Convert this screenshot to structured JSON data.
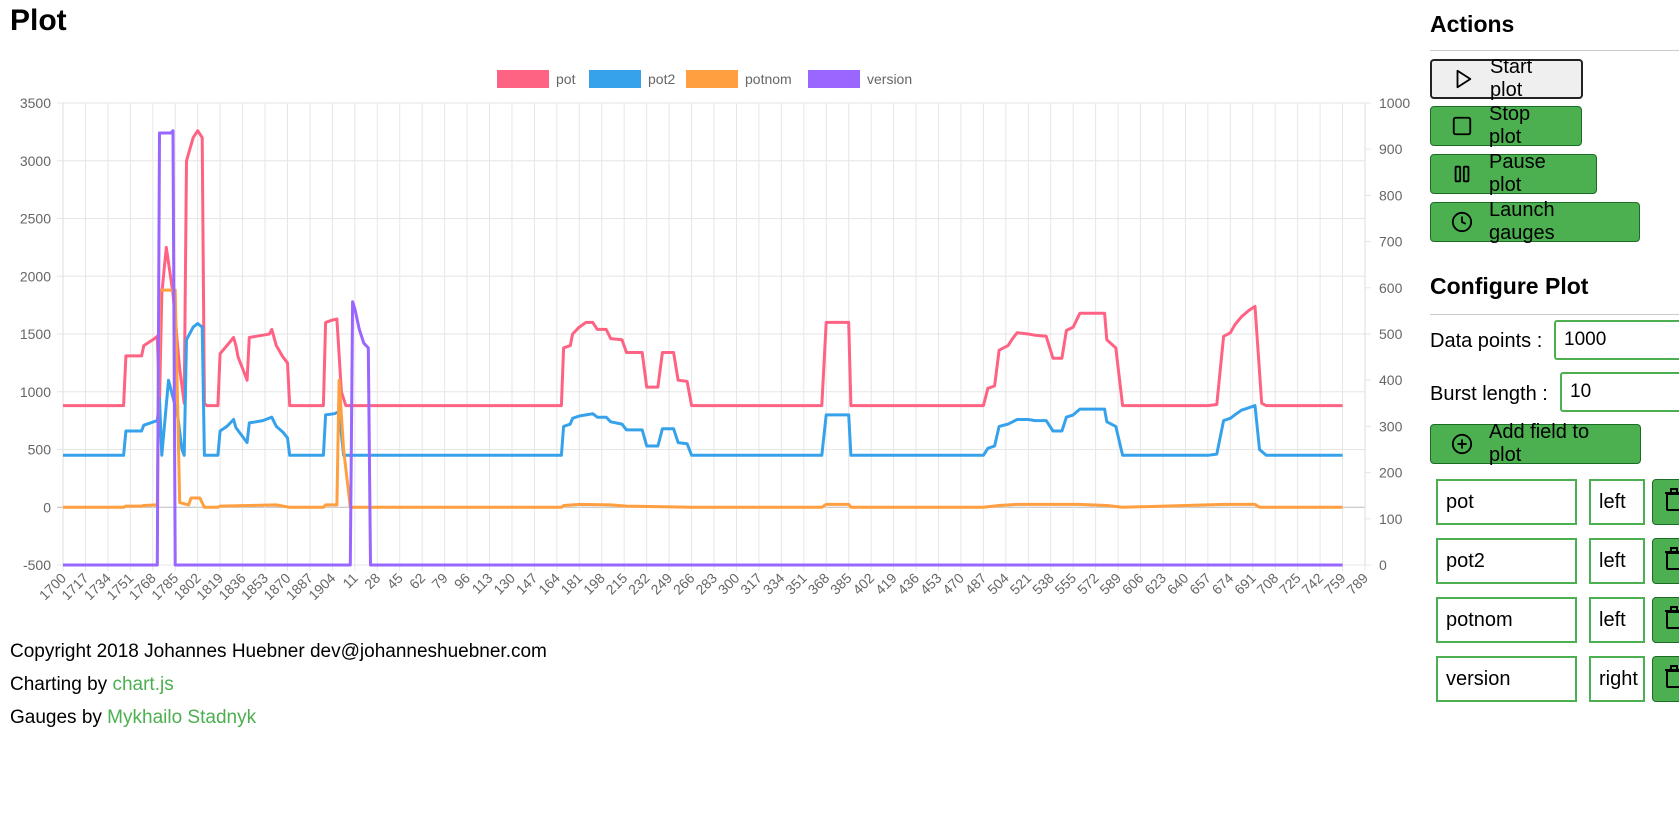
{
  "page": {
    "title": "Plot"
  },
  "footer": {
    "copyright": "Copyright 2018 Johannes Huebner dev@johanneshuebner.com",
    "charting_prefix": "Charting by ",
    "charting_link": "chart.js",
    "gauges_prefix": "Gauges by ",
    "gauges_link": "Mykhailo Stadnyk"
  },
  "actions": {
    "heading": "Actions",
    "buttons": [
      {
        "label": "Start plot",
        "icon": "play-icon"
      },
      {
        "label": "Stop plot",
        "icon": "stop-icon"
      },
      {
        "label": "Pause plot",
        "icon": "pause-icon"
      },
      {
        "label": "Launch gauges",
        "icon": "clock-icon"
      }
    ]
  },
  "configure": {
    "heading": "Configure Plot",
    "data_points_label": "Data points :",
    "data_points_value": "1000",
    "burst_length_label": "Burst length :",
    "burst_length_value": "10",
    "add_field_label": "Add field to plot",
    "fields": [
      {
        "name": "pot",
        "axis": "left"
      },
      {
        "name": "pot2",
        "axis": "left"
      },
      {
        "name": "potnom",
        "axis": "left"
      },
      {
        "name": "version",
        "axis": "right"
      }
    ]
  },
  "chart_data": {
    "type": "line",
    "legend_position": "top",
    "grid": true,
    "x_labels": [
      "1700",
      "1717",
      "1734",
      "1751",
      "1768",
      "1785",
      "1802",
      "1819",
      "1836",
      "1853",
      "1870",
      "1887",
      "1904",
      "11",
      "28",
      "45",
      "62",
      "79",
      "96",
      "113",
      "130",
      "147",
      "164",
      "181",
      "198",
      "215",
      "232",
      "249",
      "266",
      "283",
      "300",
      "317",
      "334",
      "351",
      "368",
      "385",
      "402",
      "419",
      "436",
      "453",
      "470",
      "487",
      "504",
      "521",
      "538",
      "555",
      "572",
      "589",
      "606",
      "623",
      "640",
      "657",
      "674",
      "691",
      "708",
      "725",
      "742",
      "759",
      "789"
    ],
    "y_left": {
      "min": -500,
      "max": 3500,
      "ticks": [
        3500,
        3000,
        2500,
        2000,
        1500,
        1000,
        500,
        0,
        -500
      ]
    },
    "y_right": {
      "min": 0,
      "max": 1000,
      "ticks": [
        1000,
        900,
        800,
        700,
        600,
        500,
        400,
        300,
        200,
        100,
        0
      ]
    },
    "series": [
      {
        "name": "pot",
        "axis": "left",
        "color": "#ff6384",
        "points": [
          [
            0,
            880
          ],
          [
            2.7,
            880
          ],
          [
            2.8,
            1310
          ],
          [
            3.5,
            1310
          ],
          [
            3.6,
            1400
          ],
          [
            4.0,
            1450
          ],
          [
            4.2,
            1480
          ],
          [
            4.3,
            900
          ],
          [
            4.4,
            1850
          ],
          [
            4.6,
            2250
          ],
          [
            4.9,
            1850
          ],
          [
            5.2,
            1200
          ],
          [
            5.4,
            900
          ],
          [
            5.5,
            3000
          ],
          [
            5.8,
            3200
          ],
          [
            6.0,
            3260
          ],
          [
            6.2,
            3200
          ],
          [
            6.3,
            900
          ],
          [
            6.4,
            880
          ],
          [
            6.9,
            880
          ],
          [
            7.0,
            1330
          ],
          [
            7.3,
            1400
          ],
          [
            7.6,
            1470
          ],
          [
            7.7,
            1400
          ],
          [
            7.8,
            1300
          ],
          [
            8.0,
            1200
          ],
          [
            8.2,
            1100
          ],
          [
            8.3,
            1470
          ],
          [
            8.6,
            1480
          ],
          [
            8.9,
            1490
          ],
          [
            9.2,
            1500
          ],
          [
            9.3,
            1540
          ],
          [
            9.5,
            1400
          ],
          [
            9.8,
            1300
          ],
          [
            10.0,
            1250
          ],
          [
            10.1,
            880
          ],
          [
            11.6,
            880
          ],
          [
            11.7,
            1600
          ],
          [
            12.0,
            1620
          ],
          [
            12.2,
            1630
          ],
          [
            12.4,
            1000
          ],
          [
            12.6,
            880
          ],
          [
            22.2,
            880
          ],
          [
            22.3,
            1380
          ],
          [
            22.6,
            1400
          ],
          [
            22.7,
            1500
          ],
          [
            23.0,
            1560
          ],
          [
            23.3,
            1600
          ],
          [
            23.6,
            1600
          ],
          [
            23.8,
            1540
          ],
          [
            24.2,
            1540
          ],
          [
            24.4,
            1460
          ],
          [
            24.9,
            1450
          ],
          [
            25.1,
            1340
          ],
          [
            25.8,
            1340
          ],
          [
            26.0,
            1040
          ],
          [
            26.5,
            1040
          ],
          [
            26.7,
            1340
          ],
          [
            27.2,
            1340
          ],
          [
            27.4,
            1100
          ],
          [
            27.8,
            1090
          ],
          [
            28.0,
            880
          ],
          [
            33.8,
            880
          ],
          [
            34.0,
            1600
          ],
          [
            35.0,
            1600
          ],
          [
            35.1,
            880
          ],
          [
            41.0,
            880
          ],
          [
            41.2,
            1030
          ],
          [
            41.5,
            1050
          ],
          [
            41.7,
            1360
          ],
          [
            42.1,
            1400
          ],
          [
            42.3,
            1460
          ],
          [
            42.5,
            1510
          ],
          [
            43.0,
            1500
          ],
          [
            43.3,
            1490
          ],
          [
            43.8,
            1480
          ],
          [
            44.1,
            1290
          ],
          [
            44.5,
            1290
          ],
          [
            44.7,
            1530
          ],
          [
            45.0,
            1560
          ],
          [
            45.3,
            1680
          ],
          [
            46.4,
            1680
          ],
          [
            46.5,
            1450
          ],
          [
            46.9,
            1380
          ],
          [
            47.2,
            880
          ],
          [
            51.0,
            880
          ],
          [
            51.4,
            890
          ],
          [
            51.7,
            1480
          ],
          [
            52.0,
            1510
          ],
          [
            52.2,
            1580
          ],
          [
            52.5,
            1650
          ],
          [
            52.8,
            1700
          ],
          [
            53.1,
            1740
          ],
          [
            53.4,
            900
          ],
          [
            53.6,
            880
          ],
          [
            57.0,
            880
          ]
        ]
      },
      {
        "name": "pot2",
        "axis": "left",
        "color": "#36a2eb",
        "points": [
          [
            0,
            450
          ],
          [
            2.7,
            450
          ],
          [
            2.8,
            660
          ],
          [
            3.5,
            660
          ],
          [
            3.6,
            710
          ],
          [
            4.2,
            750
          ],
          [
            4.3,
            940
          ],
          [
            4.4,
            450
          ],
          [
            4.7,
            1100
          ],
          [
            5.1,
            800
          ],
          [
            5.3,
            500
          ],
          [
            5.4,
            450
          ],
          [
            5.5,
            1450
          ],
          [
            5.8,
            1560
          ],
          [
            6.0,
            1590
          ],
          [
            6.2,
            1560
          ],
          [
            6.3,
            450
          ],
          [
            6.9,
            450
          ],
          [
            7.0,
            660
          ],
          [
            7.3,
            700
          ],
          [
            7.6,
            760
          ],
          [
            7.7,
            690
          ],
          [
            8.2,
            560
          ],
          [
            8.3,
            730
          ],
          [
            8.6,
            740
          ],
          [
            8.9,
            750
          ],
          [
            9.3,
            780
          ],
          [
            9.5,
            700
          ],
          [
            9.8,
            650
          ],
          [
            10.0,
            600
          ],
          [
            10.1,
            450
          ],
          [
            11.6,
            450
          ],
          [
            11.7,
            800
          ],
          [
            12.1,
            810
          ],
          [
            12.3,
            830
          ],
          [
            12.5,
            450
          ],
          [
            22.2,
            450
          ],
          [
            22.3,
            700
          ],
          [
            22.6,
            720
          ],
          [
            22.7,
            770
          ],
          [
            23.0,
            790
          ],
          [
            23.3,
            800
          ],
          [
            23.6,
            810
          ],
          [
            23.8,
            780
          ],
          [
            24.2,
            780
          ],
          [
            24.4,
            740
          ],
          [
            24.9,
            720
          ],
          [
            25.1,
            670
          ],
          [
            25.8,
            670
          ],
          [
            26.0,
            530
          ],
          [
            26.5,
            530
          ],
          [
            26.7,
            680
          ],
          [
            27.2,
            680
          ],
          [
            27.4,
            560
          ],
          [
            27.8,
            550
          ],
          [
            28.0,
            450
          ],
          [
            33.8,
            450
          ],
          [
            34.0,
            800
          ],
          [
            35.0,
            800
          ],
          [
            35.1,
            450
          ],
          [
            41.0,
            450
          ],
          [
            41.2,
            510
          ],
          [
            41.5,
            530
          ],
          [
            41.7,
            700
          ],
          [
            42.1,
            720
          ],
          [
            42.3,
            740
          ],
          [
            42.5,
            760
          ],
          [
            43.0,
            760
          ],
          [
            43.3,
            750
          ],
          [
            43.8,
            750
          ],
          [
            44.1,
            660
          ],
          [
            44.5,
            660
          ],
          [
            44.7,
            780
          ],
          [
            45.0,
            800
          ],
          [
            45.3,
            850
          ],
          [
            46.4,
            850
          ],
          [
            46.5,
            740
          ],
          [
            46.9,
            700
          ],
          [
            47.2,
            450
          ],
          [
            51.0,
            450
          ],
          [
            51.4,
            460
          ],
          [
            51.7,
            750
          ],
          [
            52.0,
            770
          ],
          [
            52.2,
            800
          ],
          [
            52.5,
            840
          ],
          [
            52.8,
            860
          ],
          [
            53.1,
            880
          ],
          [
            53.3,
            500
          ],
          [
            53.6,
            450
          ],
          [
            57.0,
            450
          ]
        ]
      },
      {
        "name": "potnom",
        "axis": "left",
        "color": "#ff9f40",
        "points": [
          [
            0,
            0
          ],
          [
            2.7,
            0
          ],
          [
            2.8,
            10
          ],
          [
            3.5,
            10
          ],
          [
            3.6,
            15
          ],
          [
            4.2,
            20
          ],
          [
            4.3,
            1880
          ],
          [
            5.0,
            1880
          ],
          [
            5.2,
            40
          ],
          [
            5.6,
            20
          ],
          [
            5.7,
            80
          ],
          [
            6.1,
            80
          ],
          [
            6.3,
            0
          ],
          [
            6.9,
            0
          ],
          [
            7.0,
            10
          ],
          [
            9.5,
            20
          ],
          [
            10.1,
            0
          ],
          [
            11.6,
            0
          ],
          [
            11.7,
            20
          ],
          [
            12.2,
            20
          ],
          [
            12.3,
            1100
          ],
          [
            12.5,
            500
          ],
          [
            12.8,
            0
          ],
          [
            22.2,
            0
          ],
          [
            22.3,
            15
          ],
          [
            23.0,
            25
          ],
          [
            24.4,
            20
          ],
          [
            25.1,
            10
          ],
          [
            28.0,
            0
          ],
          [
            33.8,
            0
          ],
          [
            34.0,
            25
          ],
          [
            35.0,
            25
          ],
          [
            35.1,
            0
          ],
          [
            41.0,
            0
          ],
          [
            41.7,
            15
          ],
          [
            42.5,
            25
          ],
          [
            45.3,
            25
          ],
          [
            46.5,
            15
          ],
          [
            47.2,
            0
          ],
          [
            51.7,
            25
          ],
          [
            53.1,
            25
          ],
          [
            53.3,
            0
          ],
          [
            57.0,
            0
          ]
        ]
      },
      {
        "name": "version",
        "axis": "right",
        "color": "#9966ff",
        "points": [
          [
            0,
            0
          ],
          [
            4.2,
            0
          ],
          [
            4.3,
            935
          ],
          [
            4.8,
            935
          ],
          [
            4.9,
            940
          ],
          [
            5.0,
            0
          ],
          [
            12.8,
            0
          ],
          [
            12.9,
            570
          ],
          [
            13.0,
            555
          ],
          [
            13.2,
            510
          ],
          [
            13.4,
            480
          ],
          [
            13.6,
            470
          ],
          [
            13.7,
            0
          ],
          [
            57.0,
            0
          ]
        ]
      }
    ]
  }
}
